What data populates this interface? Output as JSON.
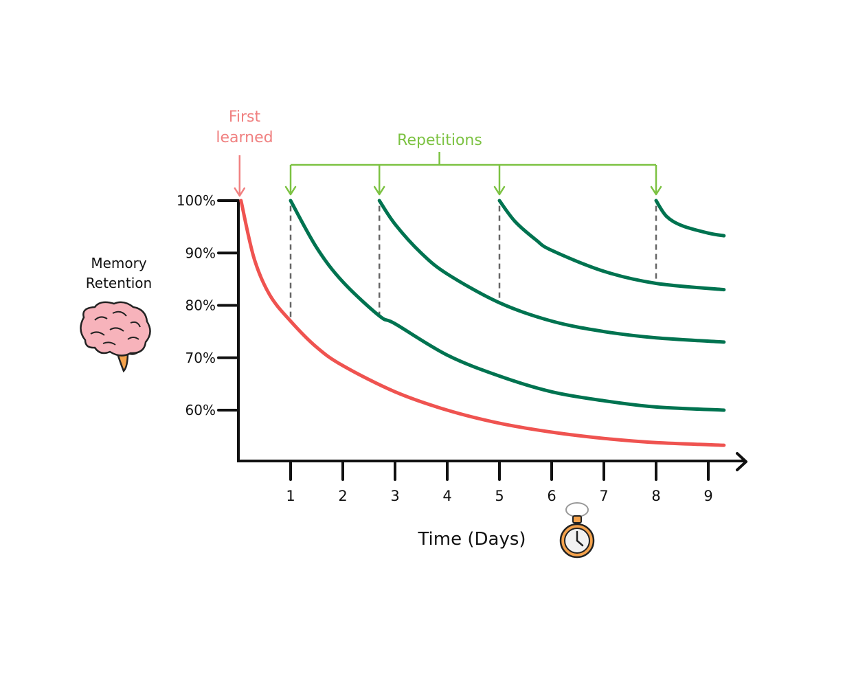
{
  "chart_data": {
    "type": "line",
    "ylabel": [
      "Memory",
      "Retention"
    ],
    "xlabel": "Time (Days)",
    "x_ticks": [
      1,
      2,
      3,
      4,
      5,
      6,
      7,
      8,
      9
    ],
    "y_ticks": [
      "100%",
      "90%",
      "80%",
      "70%",
      "60%"
    ],
    "y_tick_values": [
      100,
      90,
      80,
      70,
      60
    ],
    "xlim": [
      0,
      9.4
    ],
    "ylim": [
      50.5,
      100
    ],
    "annotations": {
      "first_learned": [
        "First",
        "learned"
      ],
      "repetitions": "Repetitions"
    },
    "repetition_days": [
      1,
      2.7,
      5,
      8
    ],
    "series": [
      {
        "color": "#ef5350",
        "x": [
          0.05,
          0.3,
          0.6,
          1,
          1.5,
          2,
          3,
          4,
          5,
          6,
          7,
          8,
          9.3
        ],
        "y": [
          100,
          89,
          82,
          77,
          72,
          68.5,
          63.5,
          60,
          57.5,
          55.8,
          54.6,
          53.8,
          53.3
        ]
      },
      {
        "color": "#007350",
        "x": [
          1,
          1.5,
          2,
          2.7,
          3,
          4,
          5,
          6,
          7,
          8,
          9.3
        ],
        "y": [
          100,
          91,
          84.5,
          78,
          76.5,
          70.5,
          66.5,
          63.5,
          61.8,
          60.6,
          60
        ]
      },
      {
        "color": "#007350",
        "x": [
          2.7,
          3,
          3.5,
          4,
          5,
          6,
          7,
          8,
          9.3
        ],
        "y": [
          100,
          95.5,
          90,
          86,
          80.5,
          77,
          75,
          73.8,
          73
        ]
      },
      {
        "color": "#007350",
        "x": [
          5,
          5.3,
          5.7,
          6,
          7,
          8,
          9.3
        ],
        "y": [
          100,
          96,
          92.5,
          90.5,
          86.5,
          84.2,
          83
        ]
      },
      {
        "color": "#007350",
        "x": [
          8,
          8.2,
          8.5,
          9,
          9.3
        ],
        "y": [
          100,
          97,
          95.2,
          93.8,
          93.3
        ]
      }
    ],
    "colors": {
      "first_learned": "#f08080",
      "repetitions": "#7cc242",
      "axis": "#111111",
      "dashed": "#666666"
    },
    "icons": [
      "brain-icon",
      "stopwatch-icon"
    ]
  }
}
